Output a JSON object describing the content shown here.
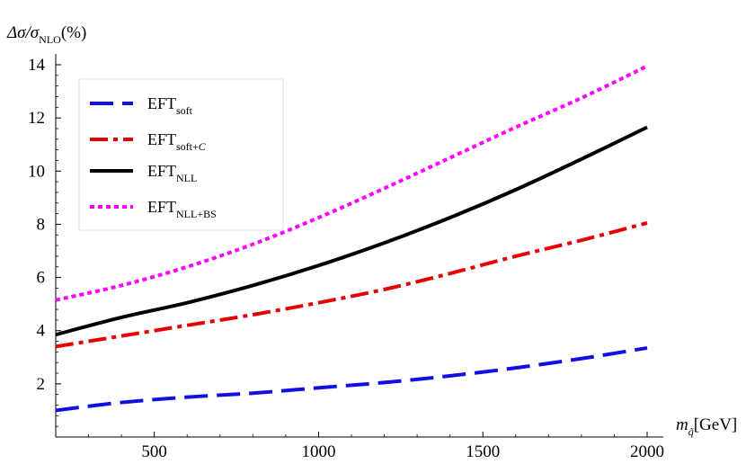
{
  "chart_data": {
    "type": "line",
    "title": "",
    "ylabel": {
      "main": "Δσ/σ",
      "sub": "NLO",
      "suffix": "(%)"
    },
    "xlabel": {
      "main": "m",
      "sub": "q̃",
      "suffix": "[GeV]"
    },
    "xlim": [
      200,
      2000
    ],
    "ylim": [
      0,
      14
    ],
    "xticks": [
      500,
      1000,
      1500,
      2000
    ],
    "yticks": [
      2,
      4,
      6,
      8,
      10,
      12,
      14
    ],
    "grid": false,
    "legend_position": "top-left",
    "series": [
      {
        "name": "EFT",
        "name_sub": "soft",
        "name_sub_italic": "",
        "color": "#1010e6",
        "style": "dashed",
        "x": [
          200,
          400,
          600,
          800,
          1000,
          1200,
          1400,
          1600,
          1800,
          2000
        ],
        "y": [
          1.0,
          1.3,
          1.5,
          1.65,
          1.85,
          2.05,
          2.3,
          2.6,
          2.95,
          3.35
        ]
      },
      {
        "name": "EFT",
        "name_sub": "soft+",
        "name_sub_italic": "C",
        "color": "#e60000",
        "style": "dashdot",
        "x": [
          200,
          400,
          600,
          800,
          1000,
          1200,
          1400,
          1600,
          1800,
          2000
        ],
        "y": [
          3.4,
          3.8,
          4.2,
          4.6,
          5.05,
          5.55,
          6.15,
          6.8,
          7.4,
          8.05
        ]
      },
      {
        "name": "EFT",
        "name_sub": "NLL",
        "name_sub_italic": "",
        "color": "#000000",
        "style": "solid",
        "x": [
          200,
          400,
          600,
          800,
          1000,
          1200,
          1400,
          1600,
          1800,
          2000
        ],
        "y": [
          3.85,
          4.5,
          5.05,
          5.7,
          6.45,
          7.3,
          8.25,
          9.3,
          10.45,
          11.65
        ]
      },
      {
        "name": "EFT",
        "name_sub": "NLL+BS",
        "name_sub_italic": "",
        "color": "#ff00ff",
        "style": "dotted",
        "x": [
          200,
          400,
          600,
          800,
          1000,
          1200,
          1400,
          1600,
          1800,
          2000
        ],
        "y": [
          5.15,
          5.7,
          6.4,
          7.25,
          8.25,
          9.35,
          10.5,
          11.65,
          12.75,
          13.95
        ]
      }
    ]
  }
}
